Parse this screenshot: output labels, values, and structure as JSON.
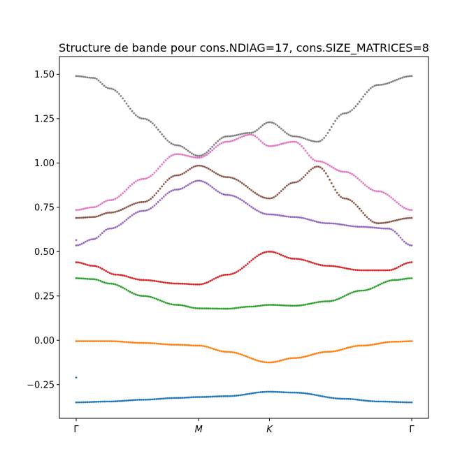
{
  "chart_data": {
    "type": "scatter",
    "title": "Structure de bande pour cons.NDIAG=17, cons.SIZE_MATRICES=8",
    "xlabel": "",
    "ylabel": "",
    "ylim": [
      -0.44,
      1.6
    ],
    "xlim": [
      -0.05,
      1.05
    ],
    "x_ticks": [
      {
        "value": 0.0,
        "label": "Γ"
      },
      {
        "value": 0.365,
        "label": "M"
      },
      {
        "value": 0.576,
        "label": "K"
      },
      {
        "value": 1.0,
        "label": "Γ"
      }
    ],
    "y_ticks": [
      {
        "value": -0.25,
        "label": "−0.25"
      },
      {
        "value": 0.0,
        "label": "0.00"
      },
      {
        "value": 0.25,
        "label": "0.25"
      },
      {
        "value": 0.5,
        "label": "0.50"
      },
      {
        "value": 0.75,
        "label": "0.75"
      },
      {
        "value": 1.0,
        "label": "1.00"
      },
      {
        "value": 1.25,
        "label": "1.25"
      },
      {
        "value": 1.5,
        "label": "1.50"
      }
    ],
    "grid": false,
    "legend": "none",
    "series": [
      {
        "color": "#1f77b4",
        "x": [
          0,
          0.1,
          0.2,
          0.3,
          0.365,
          0.45,
          0.576,
          0.65,
          0.8,
          0.9,
          1.0
        ],
        "y": [
          -0.35,
          -0.345,
          -0.335,
          -0.325,
          -0.32,
          -0.315,
          -0.29,
          -0.295,
          -0.33,
          -0.345,
          -0.35
        ],
        "outliers": [
          {
            "x": 0.0,
            "y": -0.21
          }
        ]
      },
      {
        "color": "#ff7f0e",
        "x": [
          0,
          0.1,
          0.2,
          0.3,
          0.365,
          0.45,
          0.576,
          0.65,
          0.75,
          0.85,
          0.95,
          1.0
        ],
        "y": [
          -0.005,
          -0.005,
          -0.015,
          -0.025,
          -0.03,
          -0.065,
          -0.125,
          -0.1,
          -0.065,
          -0.03,
          -0.008,
          -0.005
        ]
      },
      {
        "color": "#2ca02c",
        "x": [
          0,
          0.05,
          0.1,
          0.2,
          0.3,
          0.365,
          0.45,
          0.52,
          0.576,
          0.65,
          0.75,
          0.85,
          0.95,
          1.0
        ],
        "y": [
          0.35,
          0.345,
          0.32,
          0.25,
          0.2,
          0.18,
          0.178,
          0.19,
          0.2,
          0.195,
          0.22,
          0.28,
          0.34,
          0.35
        ]
      },
      {
        "color": "#d62728",
        "x": [
          0,
          0.05,
          0.12,
          0.2,
          0.3,
          0.365,
          0.45,
          0.576,
          0.65,
          0.75,
          0.85,
          0.93,
          1.0
        ],
        "y": [
          0.44,
          0.42,
          0.37,
          0.34,
          0.32,
          0.315,
          0.37,
          0.5,
          0.46,
          0.42,
          0.395,
          0.395,
          0.44
        ]
      },
      {
        "color": "#9467bd",
        "x": [
          0,
          0.05,
          0.1,
          0.2,
          0.3,
          0.365,
          0.45,
          0.576,
          0.65,
          0.75,
          0.85,
          0.93,
          1.0
        ],
        "y": [
          0.535,
          0.57,
          0.63,
          0.73,
          0.85,
          0.9,
          0.82,
          0.71,
          0.695,
          0.66,
          0.64,
          0.63,
          0.535
        ],
        "outliers": [
          {
            "x": 0.0,
            "y": 0.565
          }
        ]
      },
      {
        "color": "#8c564b",
        "x": [
          0,
          0.05,
          0.1,
          0.2,
          0.3,
          0.365,
          0.45,
          0.576,
          0.65,
          0.72,
          0.8,
          0.9,
          1.0
        ],
        "y": [
          0.69,
          0.695,
          0.72,
          0.78,
          0.93,
          0.985,
          0.92,
          0.8,
          0.89,
          0.98,
          0.8,
          0.66,
          0.69
        ]
      },
      {
        "color": "#e377c2",
        "x": [
          0,
          0.05,
          0.1,
          0.2,
          0.3,
          0.365,
          0.45,
          0.52,
          0.576,
          0.65,
          0.72,
          0.8,
          0.9,
          1.0
        ],
        "y": [
          0.735,
          0.75,
          0.79,
          0.91,
          1.05,
          1.03,
          1.12,
          1.16,
          1.095,
          1.12,
          1.01,
          0.95,
          0.84,
          0.735
        ]
      },
      {
        "color": "#7f7f7f",
        "x": [
          0,
          0.05,
          0.1,
          0.2,
          0.3,
          0.365,
          0.45,
          0.52,
          0.576,
          0.65,
          0.72,
          0.8,
          0.9,
          1.0
        ],
        "y": [
          1.49,
          1.48,
          1.42,
          1.25,
          1.1,
          1.04,
          1.15,
          1.17,
          1.23,
          1.15,
          1.12,
          1.28,
          1.44,
          1.49
        ]
      }
    ]
  }
}
